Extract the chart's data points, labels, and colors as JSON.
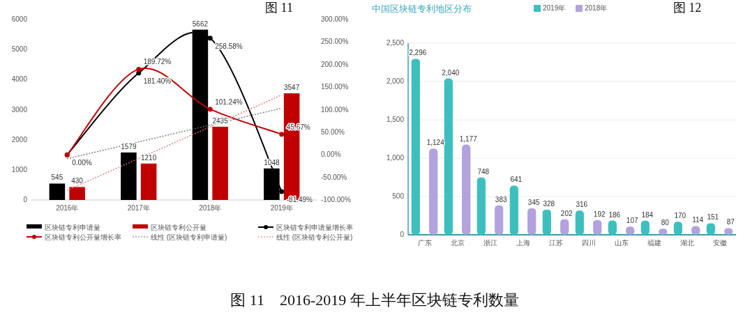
{
  "chart_data": [
    {
      "type": "bar",
      "categories": [
        "2016年",
        "2017年",
        "2018年",
        "2019年"
      ],
      "ylim": [
        0,
        6000
      ],
      "yticks": [
        0,
        1000,
        2000,
        3000,
        4000,
        5000,
        6000
      ],
      "y2lim": [
        -100,
        300
      ],
      "y2ticks": [
        {
          "value": -100,
          "label": "-100.00%"
        },
        {
          "value": -50,
          "label": "-50.00%"
        },
        {
          "value": 0,
          "label": "0.00%"
        },
        {
          "value": 50,
          "label": "50.00%"
        },
        {
          "value": 100,
          "label": "100.00%"
        },
        {
          "value": 150,
          "label": "150.00%"
        },
        {
          "value": 200,
          "label": "200.00%"
        },
        {
          "value": 250,
          "label": "250.00%"
        },
        {
          "value": 300,
          "label": "300.00%"
        }
      ],
      "grid": false,
      "legend": "bottom",
      "annotations": [
        "图 11",
        "图 11　2016-2019 年上半年区块链专利数量"
      ],
      "series": [
        {
          "name": "区块链专利申请量",
          "color": "#000000",
          "values": [
            545,
            1579,
            5662,
            1048
          ],
          "value_labels": [
            "545",
            "1579",
            "5662",
            "1048"
          ]
        },
        {
          "name": "区块链专利公开量",
          "color": "#c00000",
          "values": [
            430,
            1210,
            2435,
            3547
          ],
          "value_labels": [
            "430",
            "1210",
            "2435",
            "3547"
          ]
        },
        {
          "name": "区块链专利申请量增长率",
          "type": "line",
          "axis": "y2",
          "marker": "circle",
          "line_style": "solid",
          "color": "#000000",
          "values": [
            0,
            181.4,
            258.58,
            -81.49
          ],
          "value_labels": [
            "0.00%",
            "181.40%",
            "258.58%",
            "-81.49%"
          ]
        },
        {
          "name": "区块链专利公开量增长率",
          "type": "line",
          "axis": "y2",
          "marker": "circle",
          "line_style": "solid",
          "color": "#c00000",
          "values": [
            0,
            189.72,
            101.24,
            45.67
          ],
          "value_labels": [
            null,
            "189.72%",
            "101.24%",
            "45.67%"
          ]
        },
        {
          "name": "线性 (区块链专利申请量)",
          "type": "line",
          "marker": "none",
          "line_style": "dotted",
          "color": "#6b6b7b",
          "values": [
            1370,
            1930,
            2490,
            3050
          ]
        },
        {
          "name": "线性 (区块链专利公开量)",
          "type": "line",
          "marker": "none",
          "line_style": "dotted",
          "color": "#e07070",
          "values": [
            320,
            1380,
            2430,
            3490
          ]
        }
      ]
    },
    {
      "type": "bar",
      "title": "中国区块链专利地区分布",
      "categories": [
        "广东",
        "北京",
        "浙江",
        "上海",
        "江苏",
        "四川",
        "山东",
        "福建",
        "湖北",
        "安徽"
      ],
      "ylim": [
        0,
        2500
      ],
      "yticks": [
        {
          "value": 0,
          "label": "0"
        },
        {
          "value": 500,
          "label": "500"
        },
        {
          "value": 1000,
          "label": "1,000"
        },
        {
          "value": 1500,
          "label": "1,500"
        },
        {
          "value": 2000,
          "label": "2,000"
        },
        {
          "value": 2500,
          "label": "2,500"
        }
      ],
      "grid": "y",
      "legend": "top",
      "annotations": [
        "图 12"
      ],
      "series": [
        {
          "name": "2019年",
          "color": "#3dbfbf",
          "values": [
            2296,
            2040,
            748,
            641,
            328,
            316,
            186,
            184,
            170,
            151
          ],
          "value_labels": [
            "2,296",
            "2,040",
            "748",
            "641",
            "328",
            "316",
            "186",
            "184",
            "170",
            "151"
          ]
        },
        {
          "name": "2018年",
          "color": "#b3a2de",
          "values": [
            1124,
            1177,
            383,
            345,
            202,
            192,
            107,
            80,
            114,
            87
          ],
          "value_labels": [
            "1,124",
            "1,177",
            "383",
            "345",
            "202",
            "192",
            "107",
            "80",
            "114",
            "87"
          ]
        }
      ]
    }
  ]
}
